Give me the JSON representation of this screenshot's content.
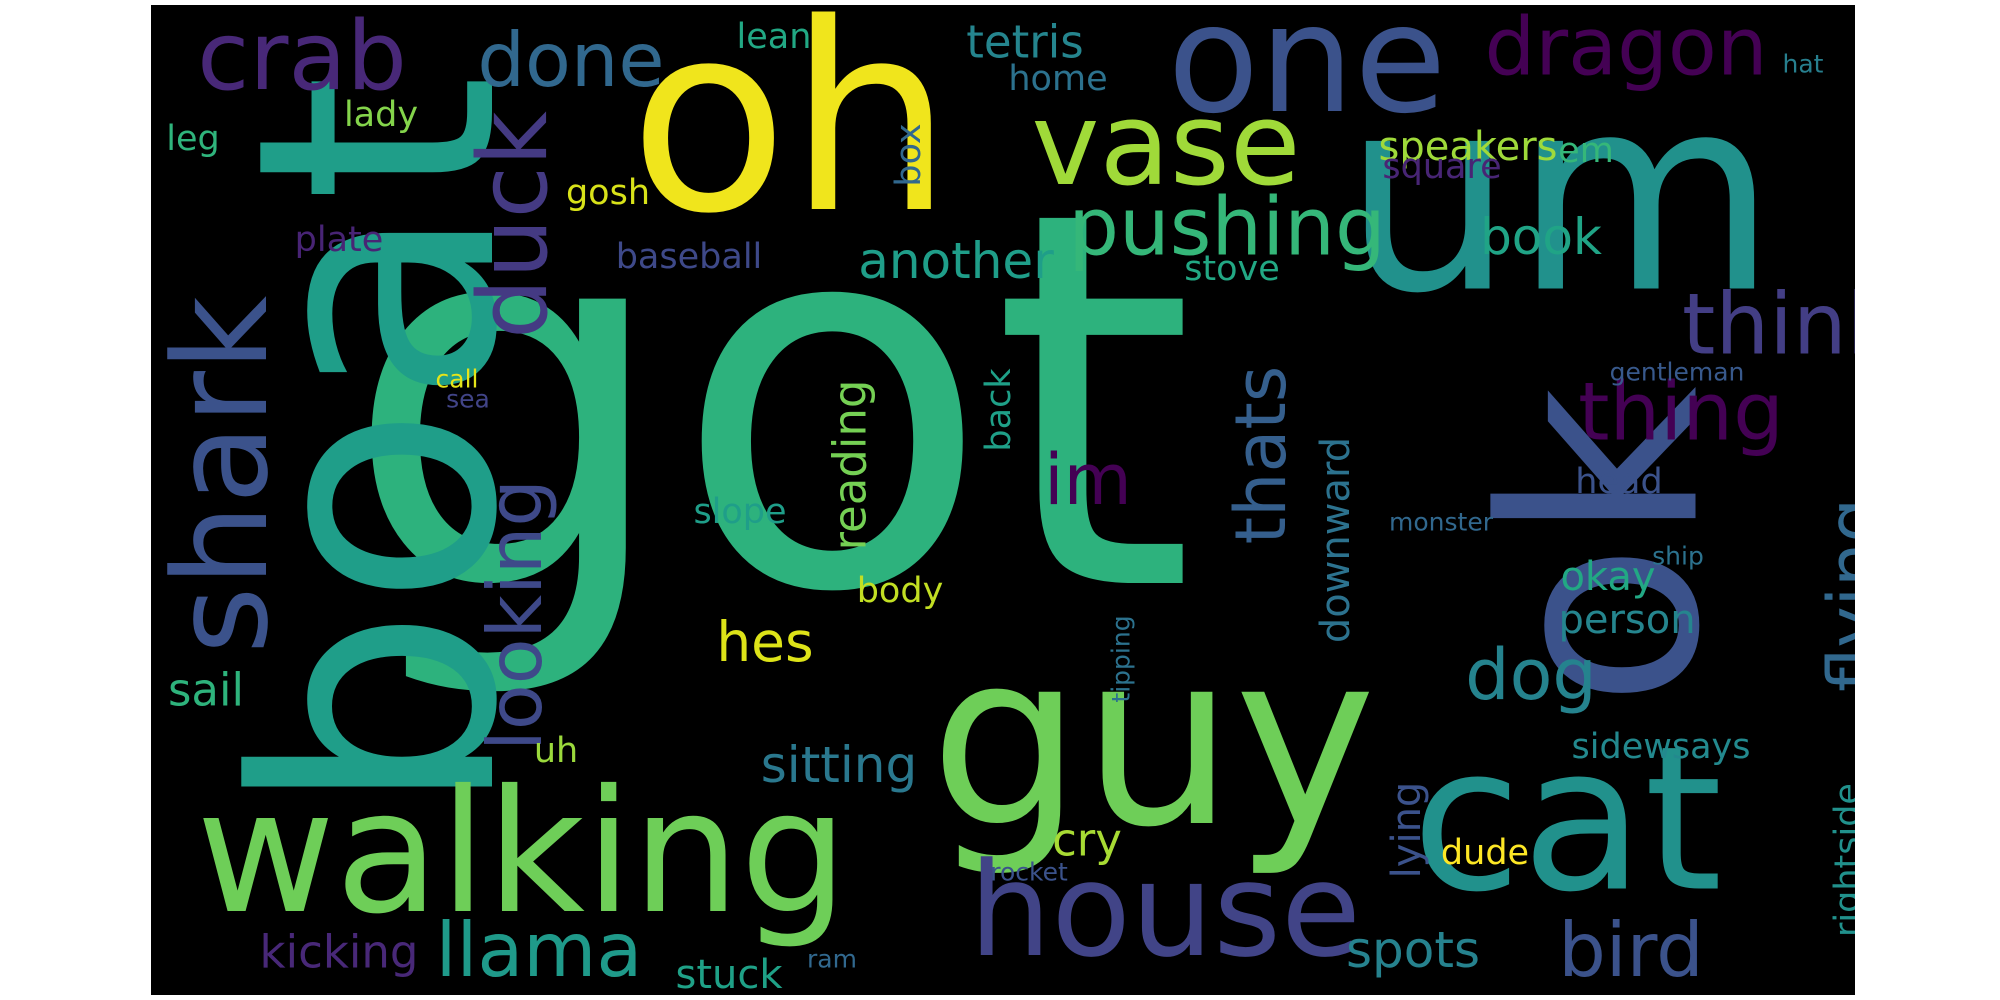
{
  "palette": {
    "background": "#000000",
    "page": "#ffffff"
  },
  "words": [
    {
      "text": "got",
      "color": "#2db27d"
    },
    {
      "text": "oh",
      "color": "#f0e51c"
    },
    {
      "text": "um",
      "color": "#21918c"
    },
    {
      "text": "boat",
      "color": "#1f9e89"
    },
    {
      "text": "ok",
      "color": "#3b528b"
    },
    {
      "text": "guy",
      "color": "#6ece58"
    },
    {
      "text": "cat",
      "color": "#21918c"
    },
    {
      "text": "walking",
      "color": "#6ece58"
    },
    {
      "text": "one",
      "color": "#3b528b"
    },
    {
      "text": "house",
      "color": "#414487"
    },
    {
      "text": "vase",
      "color": "#a0da39"
    },
    {
      "text": "shark",
      "color": "#3b528b"
    },
    {
      "text": "crab",
      "color": "#482878"
    },
    {
      "text": "duck",
      "color": "#443a83"
    },
    {
      "text": "dragon",
      "color": "#440154"
    },
    {
      "text": "think",
      "color": "#433e85"
    },
    {
      "text": "done",
      "color": "#31688e"
    },
    {
      "text": "pushing",
      "color": "#35b779"
    },
    {
      "text": "thing",
      "color": "#440154"
    },
    {
      "text": "looking",
      "color": "#3e4989"
    },
    {
      "text": "llama",
      "color": "#1f9a8a"
    },
    {
      "text": "bird",
      "color": "#3b528b"
    },
    {
      "text": "flying",
      "color": "#31688e"
    },
    {
      "text": "thats",
      "color": "#355f8d"
    },
    {
      "text": "dog",
      "color": "#25838e"
    },
    {
      "text": "im",
      "color": "#440154"
    },
    {
      "text": "hes",
      "color": "#dde318"
    },
    {
      "text": "sitting",
      "color": "#2a788e"
    },
    {
      "text": "tetris",
      "color": "#25858e"
    },
    {
      "text": "book",
      "color": "#20a486"
    },
    {
      "text": "another",
      "color": "#1f9e89"
    },
    {
      "text": "spots",
      "color": "#26828e"
    },
    {
      "text": "kicking",
      "color": "#482878"
    },
    {
      "text": "reading",
      "color": "#75d054"
    },
    {
      "text": "downward",
      "color": "#2c728e"
    },
    {
      "text": "speakers",
      "color": "#9fda3a"
    },
    {
      "text": "sail",
      "color": "#2eb37c"
    },
    {
      "text": "cry",
      "color": "#a8db34"
    },
    {
      "text": "stuck",
      "color": "#1fa187"
    },
    {
      "text": "lying",
      "color": "#3b528b"
    },
    {
      "text": "okay",
      "color": "#22a884"
    },
    {
      "text": "person",
      "color": "#25858e"
    },
    {
      "text": "sidewsays",
      "color": "#23898e"
    },
    {
      "text": "rightside",
      "color": "#21918c"
    },
    {
      "text": "slope",
      "color": "#1f9e89"
    },
    {
      "text": "head",
      "color": "#3b528b"
    },
    {
      "text": "body",
      "color": "#c2df23"
    },
    {
      "text": "gosh",
      "color": "#d8e219"
    },
    {
      "text": "dude",
      "color": "#fde725"
    },
    {
      "text": "lady",
      "color": "#84d44b"
    },
    {
      "text": "baseball",
      "color": "#3e4989"
    },
    {
      "text": "square",
      "color": "#482575"
    },
    {
      "text": "plate",
      "color": "#482475"
    },
    {
      "text": "leg",
      "color": "#2fb47c"
    },
    {
      "text": "lean",
      "color": "#22a884"
    },
    {
      "text": "home",
      "color": "#2c728e"
    },
    {
      "text": "stove",
      "color": "#22a884"
    },
    {
      "text": "box",
      "color": "#31688e"
    },
    {
      "text": "back",
      "color": "#1fa088"
    },
    {
      "text": "uh",
      "color": "#9bd93c"
    },
    {
      "text": "em",
      "color": "#35b779"
    },
    {
      "text": "gentleman",
      "color": "#38598c"
    },
    {
      "text": "monster",
      "color": "#31688e"
    },
    {
      "text": "ship",
      "color": "#2c728e"
    },
    {
      "text": "tipping",
      "color": "#2c728e"
    },
    {
      "text": "call",
      "color": "#e5e419"
    },
    {
      "text": "sea",
      "color": "#414487"
    },
    {
      "text": "hat",
      "color": "#277f8e"
    },
    {
      "text": "rocket",
      "color": "#3b528b"
    },
    {
      "text": "ram",
      "color": "#31688e"
    }
  ]
}
